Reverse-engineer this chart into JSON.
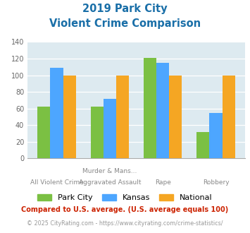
{
  "title_line1": "2019 Park City",
  "title_line2": "Violent Crime Comparison",
  "category_labels_top": [
    "",
    "Murder & Mans...",
    "",
    ""
  ],
  "category_labels_bottom": [
    "All Violent Crime",
    "Aggravated Assault",
    "Rape",
    "Robbery"
  ],
  "series": {
    "Park City": [
      62,
      62,
      121,
      32
    ],
    "Kansas": [
      109,
      72,
      115,
      55
    ],
    "National": [
      100,
      100,
      100,
      100
    ]
  },
  "colors": {
    "Park City": "#7bc043",
    "Kansas": "#4da6ff",
    "National": "#f5a623"
  },
  "ylim": [
    0,
    140
  ],
  "yticks": [
    0,
    20,
    40,
    60,
    80,
    100,
    120,
    140
  ],
  "plot_bg_color": "#ddeaf0",
  "title_color": "#1a6fa8",
  "footnote": "Compared to U.S. average. (U.S. average equals 100)",
  "footnote2": "© 2025 CityRating.com - https://www.cityrating.com/crime-statistics/",
  "footnote_color": "#cc2200",
  "footnote2_color": "#999999"
}
